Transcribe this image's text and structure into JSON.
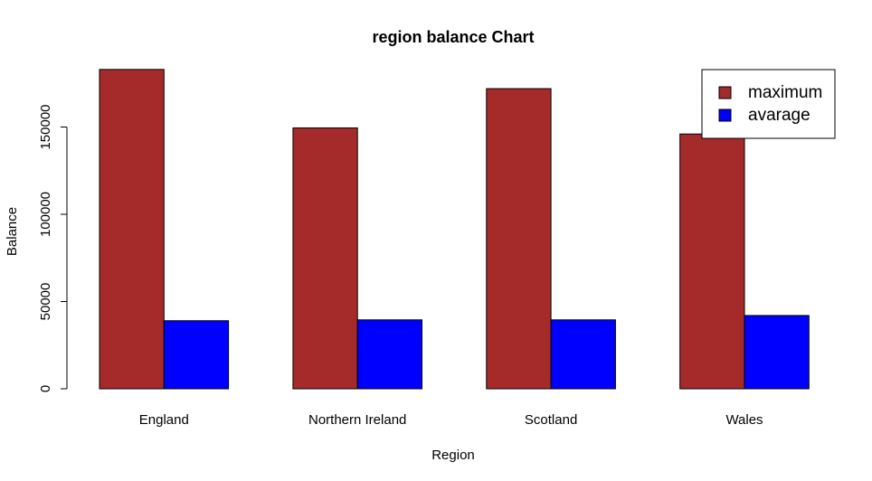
{
  "chart_data": {
    "type": "bar",
    "title": "region balance Chart",
    "xlabel": "Region",
    "ylabel": "Balance",
    "categories": [
      "England",
      "Northern Ireland",
      "Scotland",
      "Wales"
    ],
    "series": [
      {
        "name": "maximum",
        "color": "#a52a2a",
        "values": [
          183000,
          149500,
          172000,
          146000
        ]
      },
      {
        "name": "avarage",
        "color": "#0000ff",
        "values": [
          39000,
          39500,
          39500,
          42000
        ]
      }
    ],
    "ylim": [
      0,
      183000
    ],
    "yticks": [
      0,
      50000,
      100000,
      150000
    ],
    "ytick_labels": [
      "0",
      "50000",
      "100000",
      "150000"
    ],
    "legend_position": "top-right",
    "grid": false
  }
}
